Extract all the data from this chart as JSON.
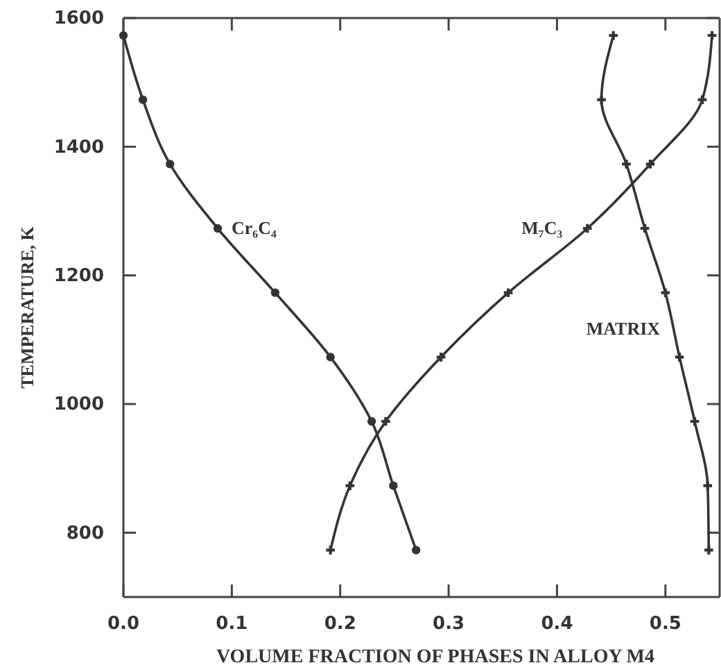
{
  "chart_data": {
    "type": "line",
    "xlabel": "VOLUME FRACTION OF PHASES IN ALLOY M4",
    "ylabel": "TEMPERATURE, K",
    "xlim": [
      0,
      0.55
    ],
    "ylim": [
      700,
      1600
    ],
    "xticks": [
      {
        "value": 0,
        "label": "0.0"
      },
      0.1,
      0.2,
      0.3,
      0.4,
      0.5
    ],
    "yticks": [
      800,
      1000,
      1200,
      1400,
      1600
    ],
    "line_style": "solid",
    "series": [
      {
        "name": "Cr₆C₄",
        "color": "#333333",
        "marker": "circle",
        "x": [
          0.0,
          0.018,
          0.043,
          0.087,
          0.14,
          0.191,
          0.229,
          0.249,
          0.27
        ],
        "values": [
          1573,
          1473,
          1373,
          1273,
          1173,
          1073,
          973,
          873,
          773
        ]
      },
      {
        "name": "M₇C₃",
        "color": "#333333",
        "marker": "cross",
        "x": [
          0.543,
          0.534,
          0.486,
          0.428,
          0.355,
          0.293,
          0.242,
          0.209,
          0.191
        ],
        "values": [
          1573,
          1473,
          1373,
          1273,
          1173,
          1073,
          973,
          873,
          773
        ]
      },
      {
        "name": "MATRIX",
        "color": "#333333",
        "marker": "cross",
        "x": [
          0.452,
          0.441,
          0.464,
          0.481,
          0.5,
          0.513,
          0.527,
          0.539,
          0.54
        ],
        "values": [
          1573,
          1473,
          1373,
          1273,
          1173,
          1073,
          973,
          873,
          773
        ]
      }
    ]
  }
}
